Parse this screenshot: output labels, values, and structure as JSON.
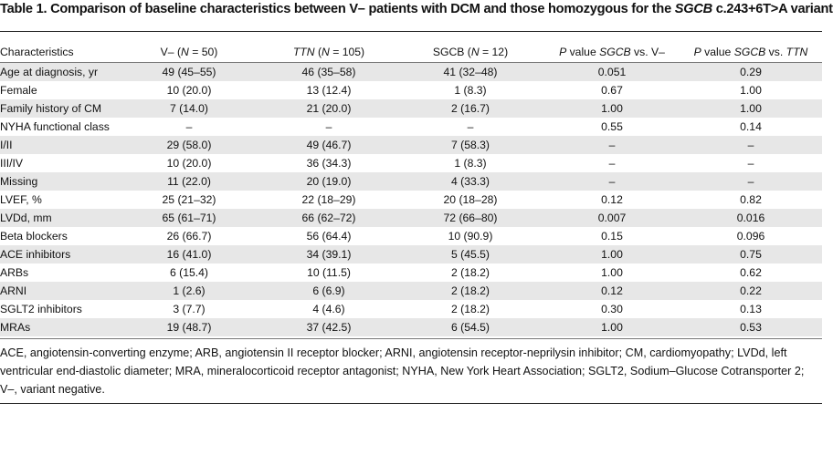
{
  "title": {
    "prefix": "Table 1. Comparison of baseline characteristics between V– patients with DCM and those homozygous for the ",
    "gene": "SGCB",
    "suffix": " c.243+6T>A variant"
  },
  "columns": [
    {
      "pre": "Characteristics",
      "it": "",
      "post": ""
    },
    {
      "pre": "V– (",
      "it": "N",
      "post": " = 50)"
    },
    {
      "pre": "",
      "it": "TTN",
      "post": " (N = 105)"
    },
    {
      "pre": "SGCB (",
      "it": "N",
      "post": " = 12)"
    },
    {
      "pre": "",
      "it": "P",
      "post": " value SGCB vs. V–"
    },
    {
      "pre": "",
      "it": "P",
      "post": " value SGCB vs. TTN"
    }
  ],
  "rows": [
    [
      "Age at diagnosis, yr",
      "49 (45–55)",
      "46 (35–58)",
      "41 (32–48)",
      "0.051",
      "0.29"
    ],
    [
      "Female",
      "10 (20.0)",
      "13 (12.4)",
      "1 (8.3)",
      "0.67",
      "1.00"
    ],
    [
      "Family history of CM",
      "7 (14.0)",
      "21 (20.0)",
      "2 (16.7)",
      "1.00",
      "1.00"
    ],
    [
      "NYHA functional class",
      "–",
      "–",
      "–",
      "0.55",
      "0.14"
    ],
    [
      "I/II",
      "29 (58.0)",
      "49 (46.7)",
      "7 (58.3)",
      "–",
      "–"
    ],
    [
      "III/IV",
      "10 (20.0)",
      "36 (34.3)",
      "1 (8.3)",
      "–",
      "–"
    ],
    [
      "Missing",
      "11 (22.0)",
      "20 (19.0)",
      "4 (33.3)",
      "–",
      "–"
    ],
    [
      "LVEF, %",
      "25 (21–32)",
      "22 (18–29)",
      "20 (18–28)",
      "0.12",
      "0.82"
    ],
    [
      "LVDd, mm",
      "65 (61–71)",
      "66 (62–72)",
      "72 (66–80)",
      "0.007",
      "0.016"
    ],
    [
      "Beta blockers",
      "26 (66.7)",
      "56 (64.4)",
      "10 (90.9)",
      "0.15",
      "0.096"
    ],
    [
      "ACE inhibitors",
      "16 (41.0)",
      "34 (39.1)",
      "5 (45.5)",
      "1.00",
      "0.75"
    ],
    [
      "ARBs",
      "6 (15.4)",
      "10 (11.5)",
      "2 (18.2)",
      "1.00",
      "0.62"
    ],
    [
      "ARNI",
      "1 (2.6)",
      "6 (6.9)",
      "2 (18.2)",
      "0.12",
      "0.22"
    ],
    [
      "SGLT2 inhibitors",
      "3 (7.7)",
      "4 (4.6)",
      "2 (18.2)",
      "0.30",
      "0.13"
    ],
    [
      "MRAs",
      "19 (48.7)",
      "37 (42.5)",
      "6 (54.5)",
      "1.00",
      "0.53"
    ]
  ],
  "footnote": "ACE, angiotensin-converting enzyme; ARB, angiotensin II receptor blocker; ARNI, angiotensin receptor-neprilysin inhibitor; CM, cardiomyopathy; LVDd, left ventricular end-diastolic diameter; MRA, mineralocorticoid receptor antagonist; NYHA, New York Heart Association; SGLT2, Sodium–Glucose Cotransporter 2; V–, variant negative."
}
